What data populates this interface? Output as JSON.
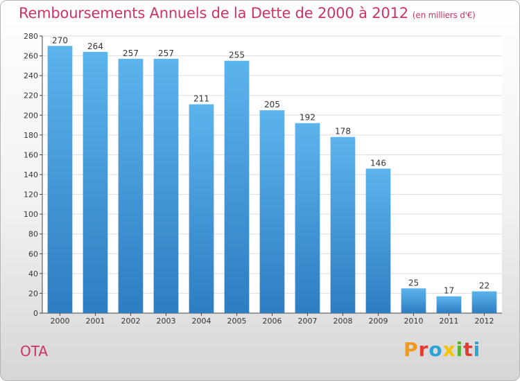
{
  "header": {
    "title": "Remboursements Annuels de la Dette de 2000 à 2012",
    "unit": "(en milliers d'€)"
  },
  "footer": {
    "commune": "OTA",
    "logo_text": "Proxiti",
    "logo_colors": [
      "#f39a1e",
      "#e03c31",
      "#2aa3d6",
      "#f5c400",
      "#5ab432",
      "#e03c31",
      "#2aa3d6"
    ]
  },
  "chart_data": {
    "type": "bar",
    "categories": [
      "2000",
      "2001",
      "2002",
      "2003",
      "2004",
      "2005",
      "2006",
      "2007",
      "2008",
      "2009",
      "2010",
      "2011",
      "2012"
    ],
    "values": [
      270,
      264,
      257,
      257,
      211,
      255,
      205,
      192,
      178,
      146,
      25,
      17,
      22
    ],
    "title": "Remboursements Annuels de la Dette de 2000 à 2012",
    "xlabel": "",
    "ylabel": "",
    "ylim": [
      0,
      280
    ],
    "yticks": [
      0,
      20,
      40,
      60,
      80,
      100,
      120,
      140,
      160,
      180,
      200,
      220,
      240,
      260,
      280
    ],
    "grid": true,
    "bar_color": "#4da6e6"
  }
}
